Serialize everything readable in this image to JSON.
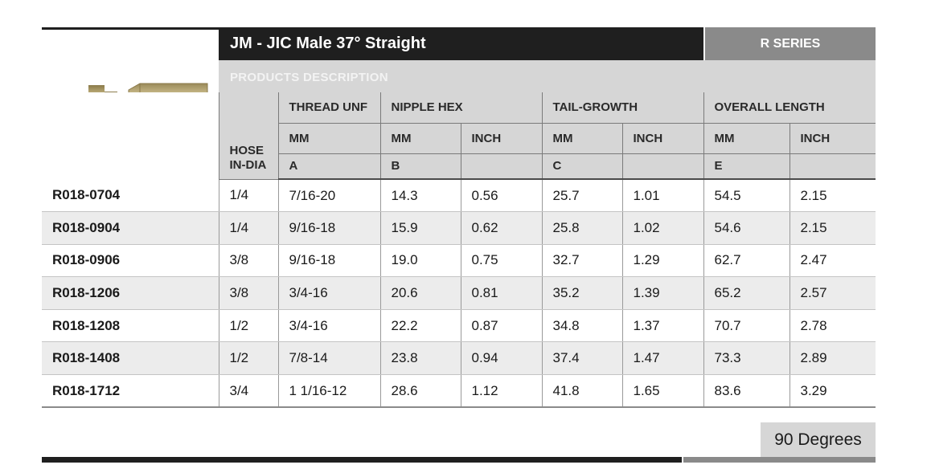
{
  "header": {
    "title": "JM - JIC Male 37° Straight",
    "series": "R SERIES",
    "description": "PRODUCTS DESCRIPTION"
  },
  "columns": {
    "hose_line1": "HOSE",
    "hose_line2": "IN-DIA",
    "thread": "THREAD UNF",
    "nipple": "NIPPLE HEX",
    "tail": "TAIL-GROWTH",
    "overall": "OVERALL LENGTH",
    "mm": "MM",
    "inch": "INCH",
    "a": "A",
    "b": "B",
    "c": "C",
    "e": "E"
  },
  "rows": [
    {
      "part": "R018-0704",
      "hose": "1/4",
      "thread": "7/16-20",
      "nipple_mm": "14.3",
      "nipple_in": "0.56",
      "tail_mm": "25.7",
      "tail_in": "1.01",
      "overall_mm": "54.5",
      "overall_in": "2.15"
    },
    {
      "part": "R018-0904",
      "hose": "1/4",
      "thread": "9/16-18",
      "nipple_mm": "15.9",
      "nipple_in": "0.62",
      "tail_mm": "25.8",
      "tail_in": "1.02",
      "overall_mm": "54.6",
      "overall_in": "2.15"
    },
    {
      "part": "R018-0906",
      "hose": "3/8",
      "thread": "9/16-18",
      "nipple_mm": "19.0",
      "nipple_in": "0.75",
      "tail_mm": "32.7",
      "tail_in": "1.29",
      "overall_mm": "62.7",
      "overall_in": "2.47"
    },
    {
      "part": "R018-1206",
      "hose": "3/8",
      "thread": "3/4-16",
      "nipple_mm": "20.6",
      "nipple_in": "0.81",
      "tail_mm": "35.2",
      "tail_in": "1.39",
      "overall_mm": "65.2",
      "overall_in": "2.57"
    },
    {
      "part": "R018-1208",
      "hose": "1/2",
      "thread": "3/4-16",
      "nipple_mm": "22.2",
      "nipple_in": "0.87",
      "tail_mm": "34.8",
      "tail_in": "1.37",
      "overall_mm": "70.7",
      "overall_in": "2.78"
    },
    {
      "part": "R018-1408",
      "hose": "1/2",
      "thread": "7/8-14",
      "nipple_mm": "23.8",
      "nipple_in": "0.94",
      "tail_mm": "37.4",
      "tail_in": "1.47",
      "overall_mm": "73.3",
      "overall_in": "2.89"
    },
    {
      "part": "R018-1712",
      "hose": "3/4",
      "thread": "1 1/16-12",
      "nipple_mm": "28.6",
      "nipple_in": "1.12",
      "tail_mm": "41.8",
      "tail_in": "1.65",
      "overall_mm": "83.6",
      "overall_in": "3.29"
    }
  ],
  "footer": {
    "degrees": "90 Degrees"
  },
  "colors": {
    "title_bg": "#1f1f1f",
    "series_bg": "#8a8a8a",
    "header_bg": "#d6d6d6",
    "alt_row_bg": "#ececec"
  }
}
